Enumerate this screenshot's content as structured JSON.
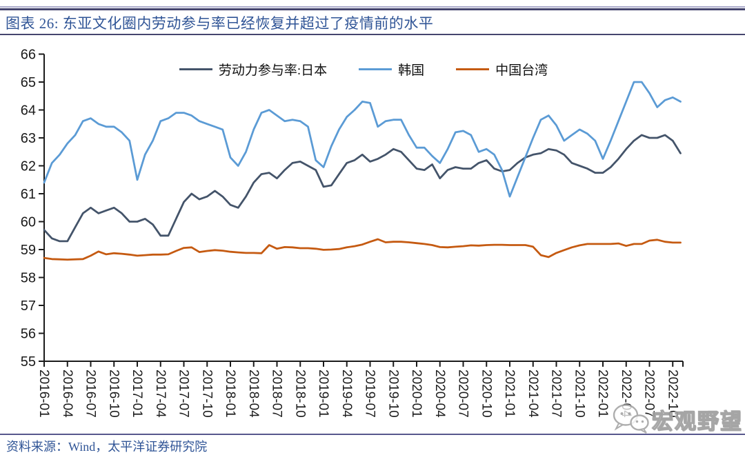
{
  "page": {
    "title": "图表 26:  东亚文化圈内劳动参与率已经恢复并超过了疫情前的水平",
    "source": "资料来源：Wind，太平洋证券研究院",
    "watermark_text": "宏观野望"
  },
  "colors": {
    "title_text": "#2F5496",
    "top_rule_dark": "#45456E",
    "top_rule_light": "#ABABCB",
    "footer_rule": "#57578C",
    "axis": "#1A1A1A",
    "watermark_gray": "#9E9E9E"
  },
  "chart_data": {
    "type": "line",
    "title": "东亚文化圈内劳动参与率已经恢复并超过了疫情前的水平",
    "grid": false,
    "legend_position": "top-center",
    "ylim": [
      55,
      66
    ],
    "y_tick_step": 1,
    "y_ticks": [
      55,
      56,
      57,
      58,
      59,
      60,
      61,
      62,
      63,
      64,
      65,
      66
    ],
    "x_tick_labels": [
      "2016-01",
      "2016-04",
      "2016-07",
      "2016-10",
      "2017-01",
      "2017-04",
      "2017-07",
      "2017-10",
      "2018-01",
      "2018-04",
      "2018-07",
      "2018-10",
      "2019-01",
      "2019-04",
      "2019-07",
      "2019-10",
      "2020-01",
      "2020-04",
      "2020-07",
      "2020-10",
      "2021-01",
      "2021-04",
      "2021-07",
      "2021-10",
      "2022-01",
      "2022-04",
      "2022-07",
      "2022-10"
    ],
    "x": [
      "2016-01",
      "2016-02",
      "2016-03",
      "2016-04",
      "2016-05",
      "2016-06",
      "2016-07",
      "2016-08",
      "2016-09",
      "2016-10",
      "2016-11",
      "2016-12",
      "2017-01",
      "2017-02",
      "2017-03",
      "2017-04",
      "2017-05",
      "2017-06",
      "2017-07",
      "2017-08",
      "2017-09",
      "2017-10",
      "2017-11",
      "2017-12",
      "2018-01",
      "2018-02",
      "2018-03",
      "2018-04",
      "2018-05",
      "2018-06",
      "2018-07",
      "2018-08",
      "2018-09",
      "2018-10",
      "2018-11",
      "2018-12",
      "2019-01",
      "2019-02",
      "2019-03",
      "2019-04",
      "2019-05",
      "2019-06",
      "2019-07",
      "2019-08",
      "2019-09",
      "2019-10",
      "2019-11",
      "2019-12",
      "2020-01",
      "2020-02",
      "2020-03",
      "2020-04",
      "2020-05",
      "2020-06",
      "2020-07",
      "2020-08",
      "2020-09",
      "2020-10",
      "2020-11",
      "2020-12",
      "2021-01",
      "2021-02",
      "2021-03",
      "2021-04",
      "2021-05",
      "2021-06",
      "2021-07",
      "2021-08",
      "2021-09",
      "2021-10",
      "2021-11",
      "2021-12",
      "2022-01",
      "2022-02",
      "2022-03",
      "2022-04",
      "2022-05",
      "2022-06",
      "2022-07",
      "2022-08",
      "2022-09",
      "2022-10",
      "2022-11"
    ],
    "series": [
      {
        "name": "劳动力参与率:日本",
        "color": "#44546A",
        "values": [
          59.7,
          59.4,
          59.3,
          59.3,
          59.8,
          60.3,
          60.5,
          60.3,
          60.4,
          60.5,
          60.3,
          60.0,
          60.0,
          60.1,
          59.9,
          59.5,
          59.5,
          60.1,
          60.7,
          61.0,
          60.8,
          60.9,
          61.1,
          60.9,
          60.6,
          60.5,
          60.9,
          61.4,
          61.7,
          61.75,
          61.55,
          61.85,
          62.1,
          62.15,
          62.0,
          61.85,
          61.25,
          61.3,
          61.7,
          62.1,
          62.2,
          62.4,
          62.15,
          62.25,
          62.4,
          62.6,
          62.5,
          62.2,
          61.9,
          61.85,
          62.05,
          61.55,
          61.85,
          61.95,
          61.9,
          61.9,
          62.1,
          62.2,
          61.9,
          61.8,
          61.85,
          62.1,
          62.3,
          62.4,
          62.45,
          62.6,
          62.55,
          62.4,
          62.1,
          62.0,
          61.9,
          61.75,
          61.75,
          61.95,
          62.25,
          62.6,
          62.9,
          63.1,
          63.0,
          63.0,
          63.1,
          62.9,
          62.45
        ]
      },
      {
        "name": "韩国",
        "color": "#5B9BD5",
        "values": [
          61.4,
          62.1,
          62.4,
          62.8,
          63.1,
          63.6,
          63.7,
          63.5,
          63.4,
          63.4,
          63.2,
          62.9,
          61.5,
          62.4,
          62.9,
          63.6,
          63.7,
          63.9,
          63.9,
          63.8,
          63.6,
          63.5,
          63.4,
          63.3,
          62.3,
          62.0,
          62.5,
          63.3,
          63.9,
          64.0,
          63.8,
          63.6,
          63.65,
          63.6,
          63.4,
          62.2,
          61.95,
          62.7,
          63.3,
          63.75,
          64.0,
          64.3,
          64.25,
          63.4,
          63.6,
          63.65,
          63.65,
          63.1,
          62.65,
          62.65,
          62.35,
          62.1,
          62.6,
          63.2,
          63.25,
          63.1,
          62.5,
          62.6,
          62.4,
          61.85,
          60.9,
          61.6,
          62.3,
          63.0,
          63.65,
          63.8,
          63.45,
          62.9,
          63.1,
          63.3,
          63.15,
          62.9,
          62.25,
          62.9,
          63.6,
          64.3,
          65.0,
          65.0,
          64.6,
          64.1,
          64.35,
          64.45,
          64.3
        ]
      },
      {
        "name": "中国台湾",
        "color": "#C55A11",
        "values": [
          58.7,
          58.66,
          58.65,
          58.64,
          58.65,
          58.66,
          58.78,
          58.93,
          58.83,
          58.87,
          58.85,
          58.82,
          58.78,
          58.8,
          58.82,
          58.82,
          58.83,
          58.95,
          59.06,
          59.08,
          58.91,
          58.95,
          58.98,
          58.96,
          58.92,
          58.9,
          58.88,
          58.88,
          58.87,
          59.16,
          59.03,
          59.09,
          59.08,
          59.05,
          59.05,
          59.03,
          58.99,
          59.0,
          59.02,
          59.08,
          59.12,
          59.18,
          59.28,
          59.37,
          59.26,
          59.28,
          59.28,
          59.26,
          59.23,
          59.2,
          59.16,
          59.09,
          59.08,
          59.1,
          59.12,
          59.15,
          59.14,
          59.16,
          59.17,
          59.17,
          59.16,
          59.16,
          59.16,
          59.1,
          58.8,
          58.73,
          58.88,
          58.98,
          59.08,
          59.15,
          59.2,
          59.2,
          59.2,
          59.2,
          59.22,
          59.13,
          59.2,
          59.2,
          59.32,
          59.35,
          59.28,
          59.25,
          59.25
        ]
      }
    ]
  }
}
